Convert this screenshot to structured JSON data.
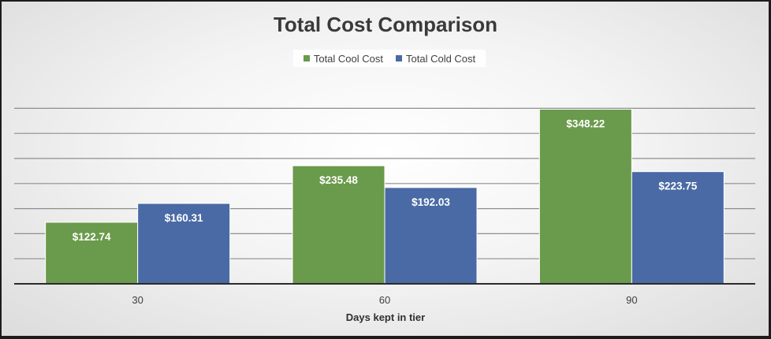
{
  "chart_data": {
    "type": "bar",
    "title": "Total Cost Comparison",
    "xlabel": "Days kept in tier",
    "ylabel": "",
    "categories": [
      "30",
      "60",
      "90"
    ],
    "series": [
      {
        "name": "Total Cool Cost",
        "values": [
          122.74,
          235.48,
          348.22
        ],
        "labels": [
          "$122.74",
          "$235.48",
          "$348.22"
        ],
        "color": "#6a9a4b"
      },
      {
        "name": "Total Cold Cost",
        "values": [
          160.31,
          192.03,
          223.75
        ],
        "labels": [
          "$160.31",
          "$192.03",
          "$223.75"
        ],
        "color": "#4a6aa5"
      }
    ],
    "ylim": [
      0,
      350
    ],
    "grid": true,
    "legend_position": "top"
  }
}
